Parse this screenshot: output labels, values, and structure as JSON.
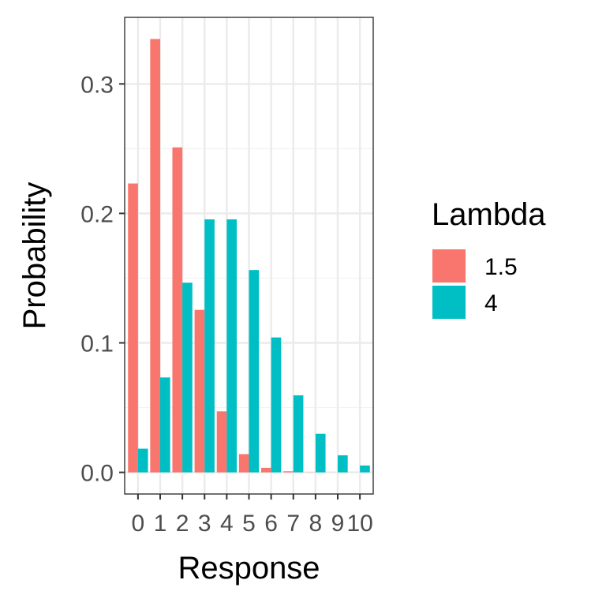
{
  "chart_data": {
    "type": "bar",
    "xlabel": "Response",
    "ylabel": "Probability",
    "categories": [
      "0",
      "1",
      "2",
      "3",
      "4",
      "5",
      "6",
      "7",
      "8",
      "9",
      "10"
    ],
    "series": [
      {
        "name": "1.5",
        "color": "#F8766D",
        "values": [
          0.2231,
          0.3347,
          0.251,
          0.1255,
          0.0471,
          0.0141,
          0.0035,
          0.0008,
          0.0001,
          0.0,
          0.0
        ]
      },
      {
        "name": "4",
        "color": "#00BFC4",
        "values": [
          0.0183,
          0.0733,
          0.1465,
          0.1954,
          0.1954,
          0.1563,
          0.1042,
          0.0595,
          0.0298,
          0.0132,
          0.0053
        ]
      }
    ],
    "yticks": [
      0.0,
      0.1,
      0.2,
      0.3
    ],
    "ytick_labels": [
      "0.0",
      "0.1",
      "0.2",
      "0.3"
    ],
    "ylim": [
      -0.0167,
      0.3514
    ],
    "grid": true,
    "legend_title": "Lambda",
    "legend_position": "right"
  }
}
